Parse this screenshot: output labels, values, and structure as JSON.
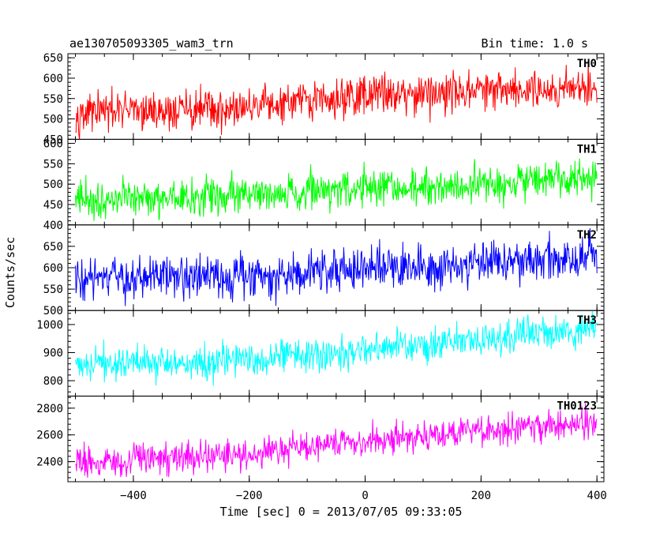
{
  "header": {
    "title": "ae130705093305_wam3_trn",
    "bin_time": "Bin time: 1.0 s"
  },
  "chart_data": {
    "type": "line",
    "xlabel": "Time [sec] 0 = 2013/07/05 09:33:05",
    "ylabel": "Counts/sec",
    "xlim": [
      -513,
      412
    ],
    "x_ticks": [
      -400,
      -200,
      0,
      200,
      400
    ],
    "x_tick_labels": [
      "−400",
      "−200",
      "0",
      "200",
      "400"
    ],
    "x_range": [
      -500,
      400
    ],
    "x_step": 1,
    "grid": false,
    "panels": [
      {
        "name": "TH0",
        "label": "TH0",
        "color": "#ff0000",
        "ylim": [
          450,
          660
        ],
        "yticks": [
          450,
          500,
          550,
          600,
          650
        ],
        "trend": [
          [
            -500,
            515
          ],
          [
            -200,
            525
          ],
          [
            0,
            560
          ],
          [
            400,
            580
          ]
        ],
        "noise": 24
      },
      {
        "name": "TH1",
        "label": "TH1",
        "color": "#00ff00",
        "ylim": [
          400,
          610
        ],
        "yticks": [
          400,
          450,
          500,
          550,
          600
        ],
        "trend": [
          [
            -500,
            460
          ],
          [
            -200,
            475
          ],
          [
            0,
            490
          ],
          [
            400,
            510
          ]
        ],
        "noise": 23
      },
      {
        "name": "TH2",
        "label": "TH2",
        "color": "#0000ff",
        "ylim": [
          500,
          700
        ],
        "yticks": [
          500,
          550,
          600,
          650
        ],
        "trend": [
          [
            -500,
            570
          ],
          [
            -200,
            580
          ],
          [
            0,
            600
          ],
          [
            400,
            625
          ]
        ],
        "noise": 25
      },
      {
        "name": "TH3",
        "label": "TH3",
        "color": "#00ffff",
        "ylim": [
          745,
          1050
        ],
        "yticks": [
          800,
          900,
          1000
        ],
        "trend": [
          [
            -500,
            860
          ],
          [
            -200,
            870
          ],
          [
            0,
            905
          ],
          [
            400,
            990
          ]
        ],
        "noise": 30
      },
      {
        "name": "TH0123",
        "label": "TH0123",
        "color": "#ff00ff",
        "ylim": [
          2250,
          2890
        ],
        "yticks": [
          2400,
          2600,
          2800
        ],
        "trend": [
          [
            -500,
            2400
          ],
          [
            -200,
            2450
          ],
          [
            0,
            2560
          ],
          [
            400,
            2700
          ]
        ],
        "noise": 55
      }
    ]
  }
}
